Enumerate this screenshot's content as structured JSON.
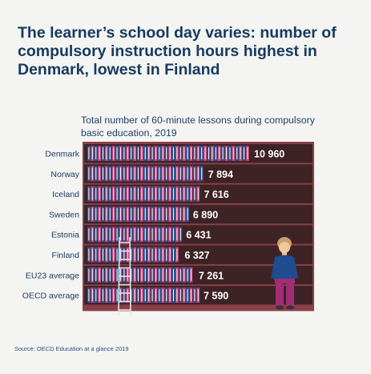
{
  "title": "The learner’s school day varies: number of compulsory instruction hours highest in Denmark, lowest in Finland",
  "source": "Source: OECD Education at a glance 2019",
  "colors": {
    "shelf": "#3d2326",
    "frame": "#8a3f49",
    "book_blue": "#2f5597",
    "book_pink": "#c2417a",
    "book_white": "#eef1f6",
    "figure_top": "#1f4d8f",
    "figure_pants": "#a22c76",
    "ladder": "#e6e6e6"
  },
  "chart_data": {
    "type": "bar",
    "title": "Total number of 60-minute lessons during compulsory basic education, 2019",
    "xlabel": "",
    "ylabel": "",
    "xlim": [
      0,
      10960
    ],
    "categories": [
      "Denmark",
      "Norway",
      "Iceland",
      "Sweden",
      "Estonia",
      "Finland",
      "EU23 average",
      "OECD average"
    ],
    "values": [
      10960,
      7894,
      7616,
      6890,
      6431,
      6327,
      7261,
      7590
    ],
    "value_labels": [
      "10 960",
      "7 894",
      "7 616",
      "6 890",
      "6 431",
      "6 327",
      "7 261",
      "7 590"
    ],
    "grid": false,
    "legend": "none"
  }
}
